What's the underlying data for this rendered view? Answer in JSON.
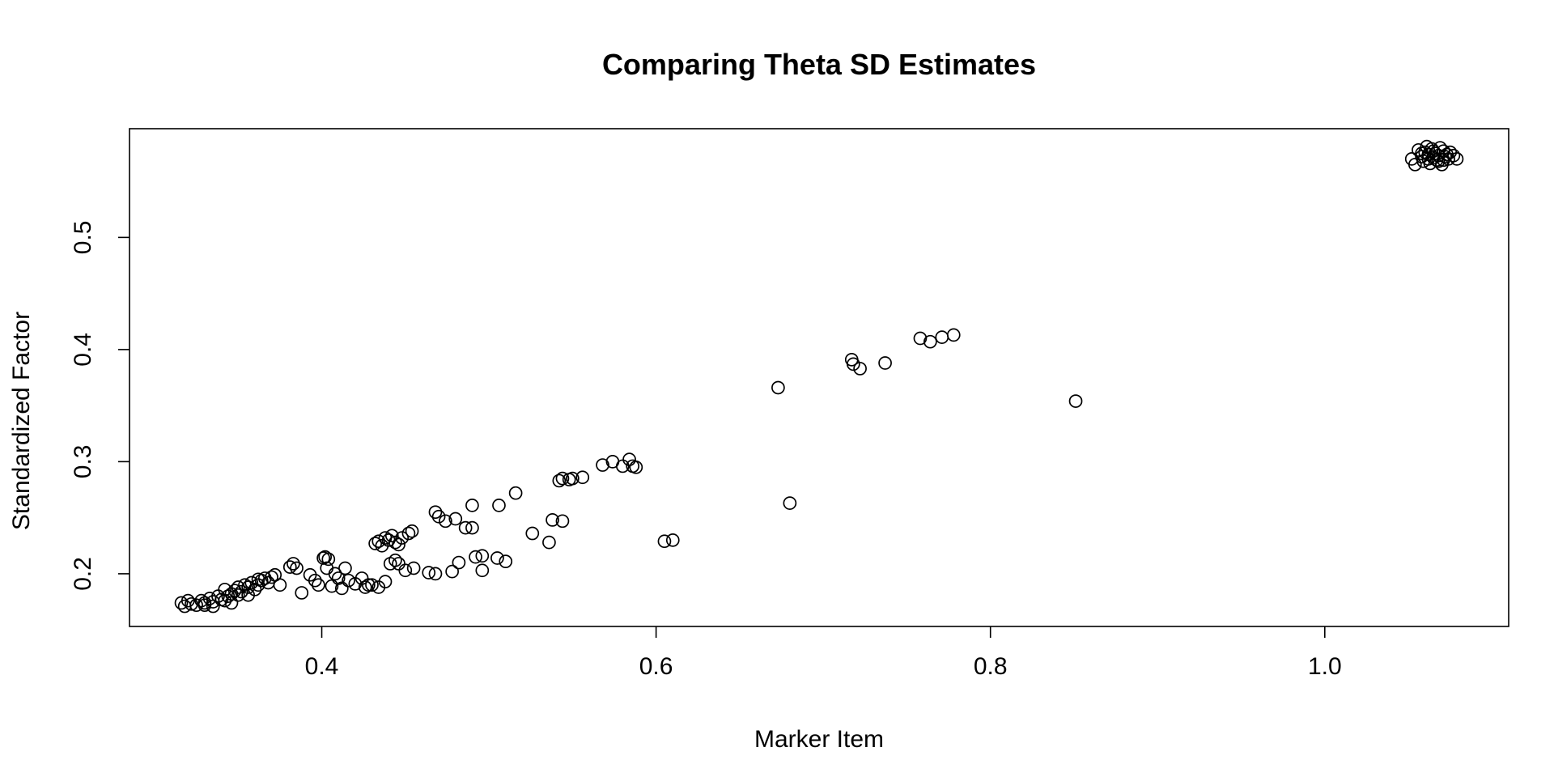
{
  "chart_data": {
    "type": "scatter",
    "title": "Comparing Theta SD Estimates",
    "xlabel": "Marker Item",
    "ylabel": "Standardized Factor",
    "xlim": [
      0.285,
      1.11
    ],
    "ylim": [
      0.153,
      0.597
    ],
    "xticks": [
      {
        "value": 0.4,
        "label": "0.4"
      },
      {
        "value": 0.6,
        "label": "0.6"
      },
      {
        "value": 0.8,
        "label": "0.8"
      },
      {
        "value": 1.0,
        "label": "1.0"
      }
    ],
    "yticks": [
      {
        "value": 0.2,
        "label": "0.2"
      },
      {
        "value": 0.3,
        "label": "0.3"
      },
      {
        "value": 0.4,
        "label": "0.4"
      },
      {
        "value": 0.5,
        "label": "0.5"
      }
    ],
    "grid": false,
    "legend": "none",
    "point_style": "open-circle",
    "color": "#000000",
    "points": [
      [
        0.316,
        0.174
      ],
      [
        0.318,
        0.171
      ],
      [
        0.32,
        0.176
      ],
      [
        0.322,
        0.173
      ],
      [
        0.325,
        0.172
      ],
      [
        0.328,
        0.176
      ],
      [
        0.33,
        0.174
      ],
      [
        0.333,
        0.178
      ],
      [
        0.335,
        0.175
      ],
      [
        0.338,
        0.18
      ],
      [
        0.34,
        0.177
      ],
      [
        0.342,
        0.176
      ],
      [
        0.344,
        0.18
      ],
      [
        0.346,
        0.182
      ],
      [
        0.348,
        0.185
      ],
      [
        0.35,
        0.188
      ],
      [
        0.352,
        0.184
      ],
      [
        0.354,
        0.19
      ],
      [
        0.356,
        0.188
      ],
      [
        0.358,
        0.192
      ],
      [
        0.36,
        0.186
      ],
      [
        0.362,
        0.19
      ],
      [
        0.364,
        0.194
      ],
      [
        0.366,
        0.196
      ],
      [
        0.368,
        0.192
      ],
      [
        0.37,
        0.197
      ],
      [
        0.372,
        0.199
      ],
      [
        0.356,
        0.181
      ],
      [
        0.346,
        0.174
      ],
      [
        0.33,
        0.172
      ],
      [
        0.35,
        0.181
      ],
      [
        0.362,
        0.195
      ],
      [
        0.335,
        0.171
      ],
      [
        0.342,
        0.186
      ],
      [
        0.375,
        0.19
      ],
      [
        0.381,
        0.206
      ],
      [
        0.383,
        0.209
      ],
      [
        0.385,
        0.205
      ],
      [
        0.388,
        0.183
      ],
      [
        0.393,
        0.199
      ],
      [
        0.396,
        0.194
      ],
      [
        0.398,
        0.19
      ],
      [
        0.402,
        0.215
      ],
      [
        0.404,
        0.213
      ],
      [
        0.403,
        0.205
      ],
      [
        0.406,
        0.189
      ],
      [
        0.408,
        0.2
      ],
      [
        0.41,
        0.196
      ],
      [
        0.412,
        0.187
      ],
      [
        0.414,
        0.205
      ],
      [
        0.416,
        0.194
      ],
      [
        0.42,
        0.191
      ],
      [
        0.424,
        0.196
      ],
      [
        0.426,
        0.188
      ],
      [
        0.428,
        0.19
      ],
      [
        0.43,
        0.19
      ],
      [
        0.434,
        0.188
      ],
      [
        0.438,
        0.193
      ],
      [
        0.441,
        0.209
      ],
      [
        0.444,
        0.212
      ],
      [
        0.446,
        0.209
      ],
      [
        0.45,
        0.203
      ],
      [
        0.455,
        0.205
      ],
      [
        0.401,
        0.214
      ],
      [
        0.432,
        0.227
      ],
      [
        0.434,
        0.229
      ],
      [
        0.436,
        0.225
      ],
      [
        0.438,
        0.232
      ],
      [
        0.44,
        0.23
      ],
      [
        0.442,
        0.234
      ],
      [
        0.444,
        0.228
      ],
      [
        0.446,
        0.226
      ],
      [
        0.448,
        0.232
      ],
      [
        0.452,
        0.236
      ],
      [
        0.454,
        0.238
      ],
      [
        0.464,
        0.201
      ],
      [
        0.468,
        0.2
      ],
      [
        0.478,
        0.202
      ],
      [
        0.482,
        0.21
      ],
      [
        0.492,
        0.215
      ],
      [
        0.496,
        0.216
      ],
      [
        0.496,
        0.203
      ],
      [
        0.505,
        0.214
      ],
      [
        0.51,
        0.211
      ],
      [
        0.468,
        0.255
      ],
      [
        0.47,
        0.251
      ],
      [
        0.474,
        0.247
      ],
      [
        0.48,
        0.249
      ],
      [
        0.486,
        0.241
      ],
      [
        0.49,
        0.241
      ],
      [
        0.49,
        0.261
      ],
      [
        0.506,
        0.261
      ],
      [
        0.516,
        0.272
      ],
      [
        0.526,
        0.236
      ],
      [
        0.536,
        0.228
      ],
      [
        0.538,
        0.248
      ],
      [
        0.544,
        0.247
      ],
      [
        0.542,
        0.283
      ],
      [
        0.544,
        0.285
      ],
      [
        0.548,
        0.284
      ],
      [
        0.55,
        0.285
      ],
      [
        0.556,
        0.286
      ],
      [
        0.568,
        0.297
      ],
      [
        0.574,
        0.3
      ],
      [
        0.58,
        0.296
      ],
      [
        0.584,
        0.302
      ],
      [
        0.586,
        0.296
      ],
      [
        0.588,
        0.295
      ],
      [
        0.605,
        0.229
      ],
      [
        0.61,
        0.23
      ],
      [
        0.673,
        0.366
      ],
      [
        0.68,
        0.263
      ],
      [
        0.717,
        0.391
      ],
      [
        0.718,
        0.387
      ],
      [
        0.722,
        0.383
      ],
      [
        0.737,
        0.388
      ],
      [
        0.758,
        0.41
      ],
      [
        0.764,
        0.407
      ],
      [
        0.771,
        0.411
      ],
      [
        0.778,
        0.413
      ],
      [
        0.851,
        0.354
      ],
      [
        1.052,
        0.57
      ],
      [
        1.054,
        0.565
      ],
      [
        1.056,
        0.578
      ],
      [
        1.058,
        0.572
      ],
      [
        1.059,
        0.568
      ],
      [
        1.06,
        0.576
      ],
      [
        1.061,
        0.581
      ],
      [
        1.062,
        0.574
      ],
      [
        1.063,
        0.566
      ],
      [
        1.064,
        0.579
      ],
      [
        1.065,
        0.571
      ],
      [
        1.066,
        0.575
      ],
      [
        1.067,
        0.569
      ],
      [
        1.068,
        0.573
      ],
      [
        1.069,
        0.58
      ],
      [
        1.07,
        0.565
      ],
      [
        1.071,
        0.577
      ],
      [
        1.072,
        0.572
      ],
      [
        1.073,
        0.574
      ],
      [
        1.074,
        0.57
      ],
      [
        1.075,
        0.576
      ],
      [
        1.077,
        0.573
      ],
      [
        1.079,
        0.57
      ],
      [
        1.062,
        0.57
      ],
      [
        1.065,
        0.577
      ],
      [
        1.068,
        0.568
      ],
      [
        1.058,
        0.575
      ],
      [
        1.071,
        0.569
      ]
    ]
  }
}
